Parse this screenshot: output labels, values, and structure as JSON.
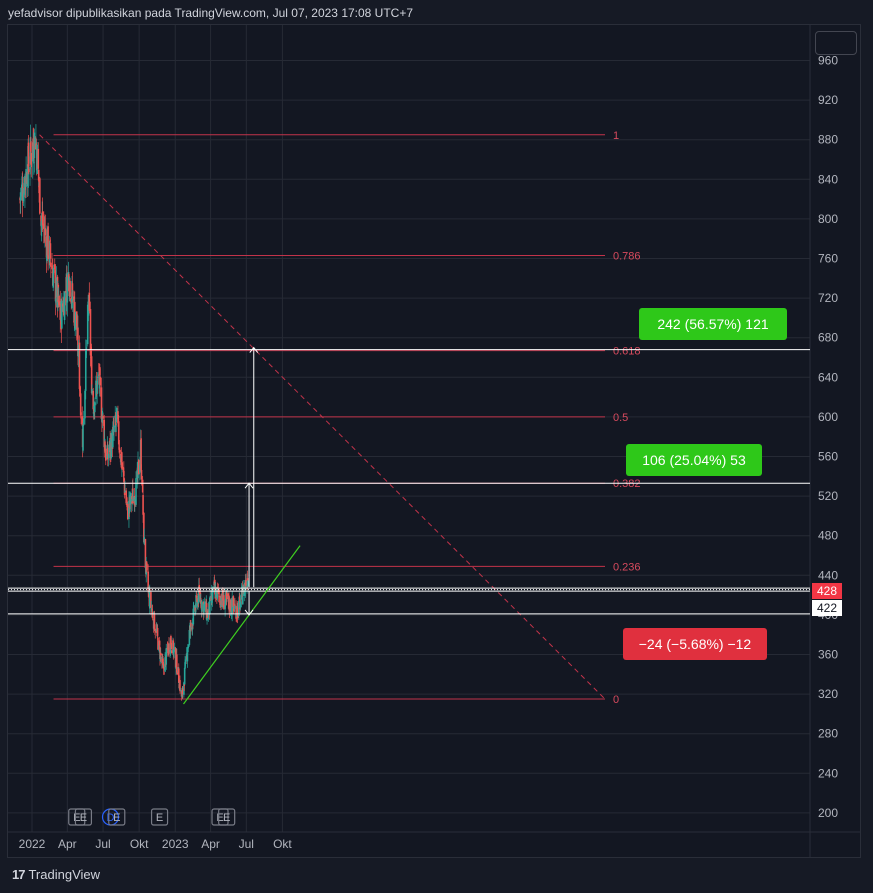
{
  "header": {
    "text": "yefadvisor dipublikasikan pada TradingView.com, Jul 07, 2023 17:08 UTC+7"
  },
  "footer": {
    "logo_mark": "17",
    "brand": "TradingView"
  },
  "colors": {
    "background": "#161a25",
    "grid": "#262a35",
    "fib": "#c2334a",
    "fib_label": "#d84a5e",
    "trend_green": "#3fcf20",
    "candle_up": "#26a69a",
    "candle_down": "#ef5350",
    "white_line": "#ffffff",
    "green_box": "#2ec819",
    "red_box": "#e0303e",
    "price_tag_red": "#f23645"
  },
  "chart_data": {
    "type": "candlestick",
    "symbol_period": "daily",
    "y_axis": {
      "ticks": [
        960,
        920,
        880,
        840,
        800,
        760,
        720,
        680,
        640,
        600,
        560,
        520,
        480,
        440,
        400,
        360,
        320,
        280,
        240,
        200
      ],
      "range": [
        185,
        975
      ]
    },
    "x_axis": {
      "labels": [
        {
          "label": "2022",
          "date": "2022-01-01"
        },
        {
          "label": "Apr",
          "date": "2022-04-01"
        },
        {
          "label": "Jul",
          "date": "2022-07-01"
        },
        {
          "label": "Okt",
          "date": "2022-10-01"
        },
        {
          "label": "2023",
          "date": "2023-01-01"
        },
        {
          "label": "Apr",
          "date": "2023-04-01"
        },
        {
          "label": "Jul",
          "date": "2023-07-01"
        },
        {
          "label": "Okt",
          "date": "2023-10-01"
        }
      ]
    },
    "price_path": [
      {
        "date": "2021-12-01",
        "price": 820
      },
      {
        "date": "2022-01-10",
        "price": 885
      },
      {
        "date": "2022-01-25",
        "price": 800
      },
      {
        "date": "2022-02-15",
        "price": 765
      },
      {
        "date": "2022-03-15",
        "price": 700
      },
      {
        "date": "2022-04-05",
        "price": 745
      },
      {
        "date": "2022-04-25",
        "price": 690
      },
      {
        "date": "2022-05-10",
        "price": 580
      },
      {
        "date": "2022-05-25",
        "price": 715
      },
      {
        "date": "2022-06-05",
        "price": 610
      },
      {
        "date": "2022-06-20",
        "price": 640
      },
      {
        "date": "2022-07-10",
        "price": 555
      },
      {
        "date": "2022-08-05",
        "price": 595
      },
      {
        "date": "2022-09-01",
        "price": 505
      },
      {
        "date": "2022-09-25",
        "price": 530
      },
      {
        "date": "2022-10-05",
        "price": 568
      },
      {
        "date": "2022-10-15",
        "price": 460
      },
      {
        "date": "2022-10-25",
        "price": 420
      },
      {
        "date": "2022-11-10",
        "price": 390
      },
      {
        "date": "2022-12-01",
        "price": 345
      },
      {
        "date": "2022-12-20",
        "price": 375
      },
      {
        "date": "2023-01-05",
        "price": 350
      },
      {
        "date": "2023-01-18",
        "price": 315
      },
      {
        "date": "2023-02-05",
        "price": 380
      },
      {
        "date": "2023-03-01",
        "price": 420
      },
      {
        "date": "2023-03-25",
        "price": 400
      },
      {
        "date": "2023-04-10",
        "price": 425
      },
      {
        "date": "2023-05-01",
        "price": 415
      },
      {
        "date": "2023-06-10",
        "price": 405
      },
      {
        "date": "2023-07-05",
        "price": 440
      }
    ],
    "fibonacci": {
      "start_date": "2022-01-10",
      "end_date": "2023-01-18",
      "levels": [
        {
          "label": "1",
          "price": 885
        },
        {
          "label": "0.786",
          "price": 763
        },
        {
          "label": "0.618",
          "price": 667
        },
        {
          "label": "0.5",
          "price": 600
        },
        {
          "label": "0.382",
          "price": 533
        },
        {
          "label": "0.236",
          "price": 449
        },
        {
          "label": "0",
          "price": 315
        }
      ]
    },
    "trendline": {
      "from": {
        "date": "2023-01-22",
        "price": 310
      },
      "to": {
        "date": "2023-11-15",
        "price": 470
      }
    },
    "horizontal_lines": [
      668,
      533,
      427,
      424,
      401
    ],
    "measures": [
      {
        "text": "242 (56.57%) 121",
        "from": 428,
        "to": 670,
        "date": "2023-07-20",
        "tone": "green"
      },
      {
        "text": "106 (25.04%) 53",
        "from": 428,
        "to": 533,
        "date": "2023-07-08",
        "tone": "green"
      },
      {
        "text": "−24 (−5.68%) −12",
        "from": 424,
        "to": 400,
        "date": "2023-07-08",
        "tone": "red"
      }
    ],
    "price_tags": [
      {
        "value": "428",
        "tone": "red"
      },
      {
        "value": "422",
        "tone": "white"
      }
    ],
    "event_markers": [
      {
        "letter": "E",
        "date": "2022-04-25"
      },
      {
        "letter": "E",
        "date": "2022-05-12"
      },
      {
        "letter": "D",
        "date": "2022-07-20"
      },
      {
        "letter": "E",
        "date": "2022-08-05"
      },
      {
        "letter": "E",
        "date": "2022-11-22"
      },
      {
        "letter": "E",
        "date": "2023-04-25"
      },
      {
        "letter": "E",
        "date": "2023-05-12"
      }
    ]
  }
}
